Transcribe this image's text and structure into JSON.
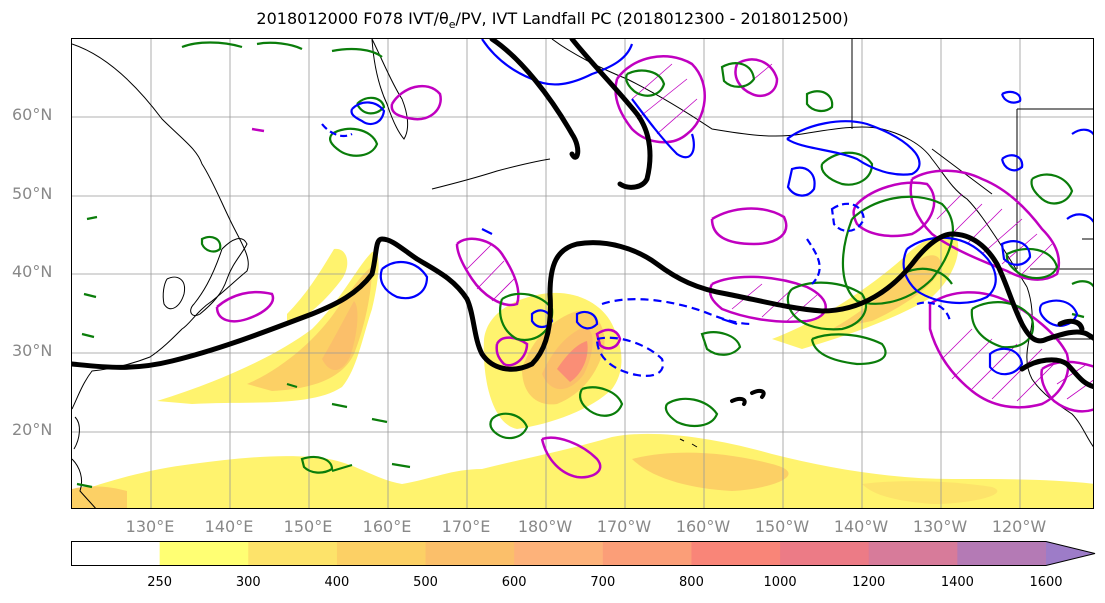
{
  "title": "2018012000 F078 IVT/θ",
  "title_sub": "e",
  "title_rest": "/PV, IVT Landfall PC (2018012300 - 2018012500)",
  "lat_labels": [
    "60°N",
    "50°N",
    "40°N",
    "30°N",
    "20°N"
  ],
  "lon_labels": [
    "130°E",
    "140°E",
    "150°E",
    "160°E",
    "170°E",
    "180°W",
    "170°W",
    "160°W",
    "150°W",
    "140°W",
    "130°W",
    "120°W"
  ],
  "colorbar": {
    "levels": [
      "250",
      "300",
      "400",
      "500",
      "600",
      "700",
      "800",
      "1000",
      "1200",
      "1400",
      "1600"
    ],
    "colors": [
      "#ffffff",
      "#ffff73",
      "#fde36a",
      "#fcd065",
      "#fbbf6a",
      "#fdb27a",
      "#fb9e78",
      "#f98578",
      "#ec7b86",
      "#d77b9a",
      "#b47ab5",
      "#9d7cc8"
    ]
  },
  "contour_colors": {
    "theta_e": "#000000",
    "pv_positive": "#0a7d0a",
    "pv_negative": "#0000ff",
    "ivt_landfall": "#c000c0"
  }
}
